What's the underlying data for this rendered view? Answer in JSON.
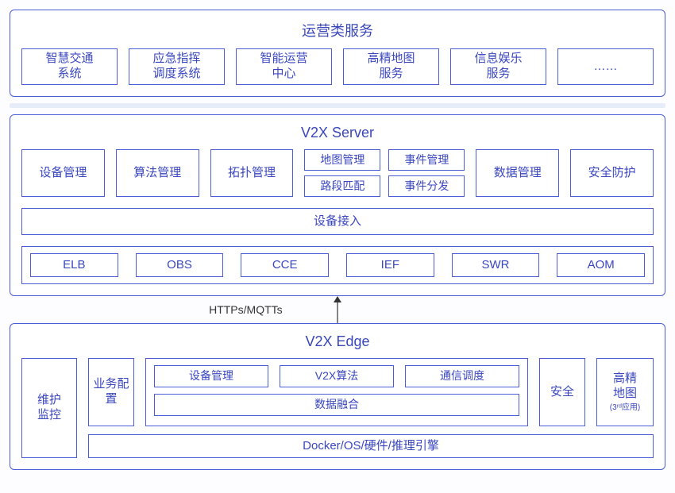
{
  "colors": {
    "border": "#4a5dd6",
    "title": "#3946b8",
    "text": "#3a47bf",
    "sep": "#e7ecf9",
    "bg": "#ffffff"
  },
  "ops": {
    "title": "运营类服务",
    "items": [
      "智慧交通\n系统",
      "应急指挥\n调度系统",
      "智能运营\n中心",
      "高精地图\n服务",
      "信息娱乐\n服务",
      "……"
    ]
  },
  "server": {
    "title": "V2X Server",
    "row1": {
      "left": [
        "设备管理",
        "算法管理",
        "拓扑管理"
      ],
      "mid_top": [
        "地图管理",
        "事件管理"
      ],
      "mid_bot": [
        "路段匹配",
        "事件分发"
      ],
      "right": [
        "数据管理",
        "安全防护"
      ]
    },
    "access": "设备接入",
    "infra": [
      "ELB",
      "OBS",
      "CCE",
      "IEF",
      "SWR",
      "AOM"
    ]
  },
  "conn": {
    "label": "HTTPs/MQTTs"
  },
  "edge": {
    "title": "V2X Edge",
    "left": [
      "维护\n监控",
      "业务配\n置"
    ],
    "mid": {
      "top": [
        "设备管理",
        "V2X算法",
        "通信调度"
      ],
      "fuse": "数据融合"
    },
    "security": "安全",
    "map": {
      "label": "高精\n地图",
      "note": "(3ʳᵈ应用)"
    },
    "base": "Docker/OS/硬件/推理引擎"
  }
}
